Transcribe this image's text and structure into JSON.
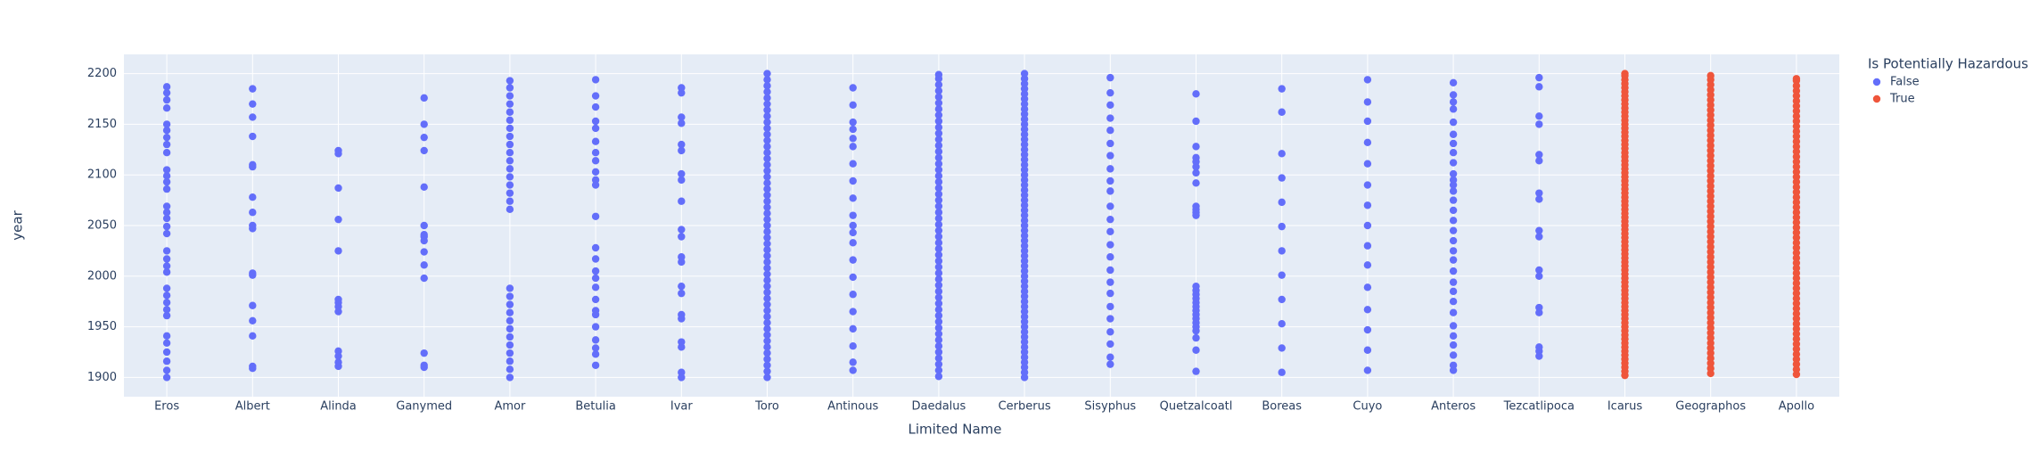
{
  "chart_data": {
    "type": "strip",
    "x_label": "Limited Name",
    "y_label": "year",
    "legend_title": "Is Potentially Hazardous",
    "legend_position": "right",
    "categories": [
      "Eros",
      "Albert",
      "Alinda",
      "Ganymed",
      "Amor",
      "Betulia",
      "Ivar",
      "Toro",
      "Antinous",
      "Daedalus",
      "Cerberus",
      "Sisyphus",
      "Quetzalcoatl",
      "Boreas",
      "Cuyo",
      "Anteros",
      "Tezcatlipoca",
      "Icarus",
      "Geographos",
      "Apollo"
    ],
    "ylim": [
      1881,
      2219
    ],
    "yticks": [
      1900,
      1950,
      2000,
      2050,
      2100,
      2150,
      2200
    ],
    "grid": true,
    "series": [
      {
        "name": "False",
        "color": "#636efa",
        "values": [
          [
            1900,
            1907,
            1916,
            1925,
            1934,
            1941,
            1961,
            1967,
            1974,
            1981,
            1988,
            2004,
            2010,
            2017,
            2025,
            2042,
            2049,
            2057,
            2063,
            2069,
            2086,
            2093,
            2099,
            2105,
            2122,
            2130,
            2137,
            2144,
            2150,
            2166,
            2174,
            2181,
            2187
          ],
          [
            1909,
            1911,
            1941,
            1956,
            1971,
            2001,
            2003,
            2047,
            2050,
            2063,
            2078,
            2108,
            2110,
            2138,
            2157,
            2170,
            2185
          ],
          [
            1911,
            1915,
            1921,
            1926,
            1965,
            1970,
            1974,
            1977,
            2025,
            2056,
            2087,
            2121,
            2124
          ],
          [
            1910,
            1912,
            1924,
            1998,
            2011,
            2024,
            2035,
            2039,
            2041,
            2050,
            2088,
            2124,
            2137,
            2150,
            2176
          ],
          [
            1900,
            1908,
            1916,
            1924,
            1932,
            1940,
            1948,
            1956,
            1964,
            1972,
            1980,
            1988,
            2066,
            2074,
            2082,
            2090,
            2098,
            2106,
            2114,
            2122,
            2130,
            2138,
            2146,
            2154,
            2162,
            2170,
            2178,
            2186,
            2193
          ],
          [
            1912,
            1923,
            1929,
            1937,
            1950,
            1962,
            1966,
            1977,
            1989,
            1998,
            2005,
            2017,
            2028,
            2059,
            2090,
            2095,
            2103,
            2114,
            2122,
            2133,
            2146,
            2153,
            2167,
            2178,
            2194
          ],
          [
            1900,
            1905,
            1930,
            1935,
            1958,
            1962,
            1983,
            1990,
            2014,
            2019,
            2039,
            2046,
            2074,
            2095,
            2101,
            2124,
            2130,
            2151,
            2157,
            2181,
            2186
          ],
          [
            1900,
            1906,
            1912,
            1918,
            1924,
            1930,
            1936,
            1942,
            1948,
            1954,
            1960,
            1966,
            1972,
            1978,
            1984,
            1990,
            1996,
            2002,
            2008,
            2014,
            2020,
            2026,
            2032,
            2038,
            2044,
            2050,
            2056,
            2062,
            2068,
            2074,
            2080,
            2086,
            2092,
            2098,
            2104,
            2110,
            2116,
            2122,
            2128,
            2134,
            2140,
            2146,
            2152,
            2158,
            2164,
            2170,
            2176,
            2182,
            2188,
            2194,
            2200
          ],
          [
            1907,
            1915,
            1931,
            1948,
            1965,
            1982,
            1999,
            2016,
            2033,
            2043,
            2050,
            2060,
            2077,
            2094,
            2111,
            2128,
            2136,
            2145,
            2152,
            2169,
            2186
          ],
          [
            1901,
            1907,
            1913,
            1919,
            1925,
            1931,
            1937,
            1943,
            1949,
            1955,
            1961,
            1967,
            1973,
            1979,
            1985,
            1991,
            1997,
            2003,
            2009,
            2015,
            2021,
            2027,
            2033,
            2039,
            2045,
            2051,
            2057,
            2063,
            2069,
            2075,
            2081,
            2087,
            2093,
            2099,
            2105,
            2111,
            2117,
            2123,
            2129,
            2135,
            2141,
            2147,
            2153,
            2159,
            2165,
            2171,
            2177,
            2183,
            2189,
            2195,
            2199
          ],
          [
            1900,
            1905,
            1910,
            1915,
            1920,
            1925,
            1930,
            1935,
            1940,
            1945,
            1950,
            1955,
            1960,
            1965,
            1970,
            1975,
            1980,
            1985,
            1990,
            1995,
            2000,
            2005,
            2010,
            2015,
            2020,
            2025,
            2030,
            2035,
            2040,
            2045,
            2050,
            2055,
            2060,
            2065,
            2070,
            2075,
            2080,
            2085,
            2090,
            2095,
            2100,
            2105,
            2110,
            2115,
            2120,
            2125,
            2130,
            2135,
            2140,
            2145,
            2150,
            2155,
            2160,
            2165,
            2170,
            2175,
            2180,
            2185,
            2190,
            2195,
            2200
          ],
          [
            1913,
            1920,
            1933,
            1945,
            1958,
            1970,
            1983,
            1994,
            2006,
            2019,
            2031,
            2044,
            2056,
            2069,
            2084,
            2094,
            2106,
            2119,
            2131,
            2144,
            2156,
            2169,
            2181,
            2196
          ],
          [
            1906,
            1927,
            1939,
            1946,
            1950,
            1954,
            1958,
            1962,
            1966,
            1970,
            1974,
            1978,
            1982,
            1986,
            1990,
            2060,
            2063,
            2066,
            2069,
            2092,
            2102,
            2108,
            2113,
            2117,
            2128,
            2153,
            2180
          ],
          [
            1905,
            1929,
            1953,
            1977,
            2001,
            2025,
            2049,
            2073,
            2097,
            2121,
            2162,
            2185
          ],
          [
            1907,
            1927,
            1947,
            1967,
            1989,
            2011,
            2030,
            2050,
            2070,
            2090,
            2111,
            2132,
            2153,
            2172,
            2194
          ],
          [
            1907,
            1912,
            1922,
            1932,
            1941,
            1951,
            1964,
            1975,
            1985,
            1994,
            2005,
            2016,
            2025,
            2035,
            2045,
            2055,
            2065,
            2075,
            2084,
            2090,
            2095,
            2101,
            2112,
            2122,
            2131,
            2140,
            2152,
            2165,
            2172,
            2179,
            2191
          ],
          [
            1921,
            1926,
            1930,
            1964,
            1969,
            2000,
            2006,
            2039,
            2045,
            2076,
            2082,
            2114,
            2120,
            2150,
            2158,
            2187,
            2196
          ],
          null,
          null,
          null
        ]
      },
      {
        "name": "True",
        "color": "#EF553B",
        "values": [
          null,
          null,
          null,
          null,
          null,
          null,
          null,
          null,
          null,
          null,
          null,
          null,
          null,
          null,
          null,
          null,
          null,
          [
            1902,
            1906,
            1910,
            1914,
            1918,
            1922,
            1926,
            1930,
            1934,
            1938,
            1942,
            1946,
            1950,
            1954,
            1958,
            1962,
            1966,
            1970,
            1974,
            1978,
            1982,
            1986,
            1990,
            1994,
            1998,
            2002,
            2006,
            2010,
            2014,
            2018,
            2022,
            2026,
            2030,
            2034,
            2038,
            2042,
            2046,
            2050,
            2054,
            2058,
            2062,
            2066,
            2070,
            2074,
            2078,
            2082,
            2086,
            2090,
            2094,
            2098,
            2102,
            2106,
            2110,
            2114,
            2118,
            2122,
            2126,
            2130,
            2134,
            2138,
            2142,
            2146,
            2150,
            2154,
            2158,
            2162,
            2166,
            2170,
            2174,
            2178,
            2182,
            2186,
            2190,
            2194,
            2198,
            2200
          ],
          [
            1904,
            1909,
            1914,
            1919,
            1924,
            1929,
            1934,
            1939,
            1944,
            1949,
            1954,
            1959,
            1964,
            1969,
            1974,
            1979,
            1984,
            1989,
            1994,
            1999,
            2004,
            2009,
            2014,
            2019,
            2024,
            2029,
            2034,
            2039,
            2044,
            2049,
            2054,
            2059,
            2064,
            2069,
            2074,
            2079,
            2084,
            2089,
            2094,
            2099,
            2104,
            2109,
            2114,
            2119,
            2124,
            2129,
            2134,
            2139,
            2144,
            2149,
            2154,
            2159,
            2164,
            2169,
            2174,
            2179,
            2184,
            2189,
            2194,
            2198
          ],
          [
            1903,
            1908,
            1913,
            1918,
            1923,
            1928,
            1933,
            1938,
            1943,
            1948,
            1953,
            1958,
            1963,
            1968,
            1973,
            1978,
            1983,
            1988,
            1993,
            1998,
            2003,
            2008,
            2013,
            2018,
            2023,
            2028,
            2033,
            2038,
            2043,
            2048,
            2053,
            2058,
            2063,
            2068,
            2073,
            2078,
            2083,
            2088,
            2093,
            2098,
            2103,
            2108,
            2113,
            2118,
            2123,
            2128,
            2133,
            2138,
            2143,
            2148,
            2153,
            2158,
            2163,
            2168,
            2173,
            2178,
            2183,
            2188,
            2193,
            2195
          ]
        ]
      }
    ]
  }
}
